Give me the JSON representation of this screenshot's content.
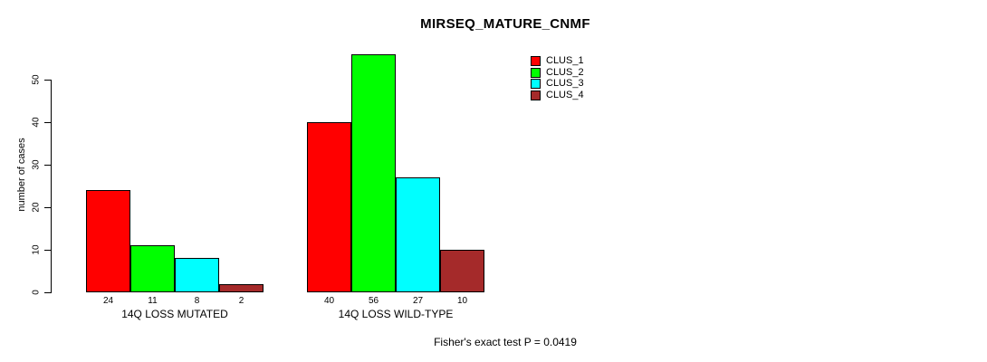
{
  "chart_data": {
    "type": "bar",
    "title": "MIRSEQ_MATURE_CNMF",
    "ylabel": "number of cases",
    "xlabel": "",
    "ylim": [
      0,
      50
    ],
    "yticks": [
      0,
      10,
      20,
      30,
      40,
      50
    ],
    "grid": false,
    "legend_position": "top-right-inside",
    "categories": [
      "14Q LOSS MUTATED",
      "14Q LOSS WILD-TYPE"
    ],
    "series": [
      {
        "name": "CLUS_1",
        "color": "#ff0000",
        "values": [
          24,
          40
        ]
      },
      {
        "name": "CLUS_2",
        "color": "#00ff00",
        "values": [
          11,
          56
        ]
      },
      {
        "name": "CLUS_3",
        "color": "#00ffff",
        "values": [
          8,
          27
        ]
      },
      {
        "name": "CLUS_4",
        "color": "#a52a2a",
        "values": [
          2,
          10
        ]
      }
    ],
    "bar_value_labels": [
      [
        24,
        11,
        8,
        2
      ],
      [
        40,
        56,
        27,
        10
      ]
    ],
    "annotation": "Fisher's exact test P = 0.0419"
  }
}
